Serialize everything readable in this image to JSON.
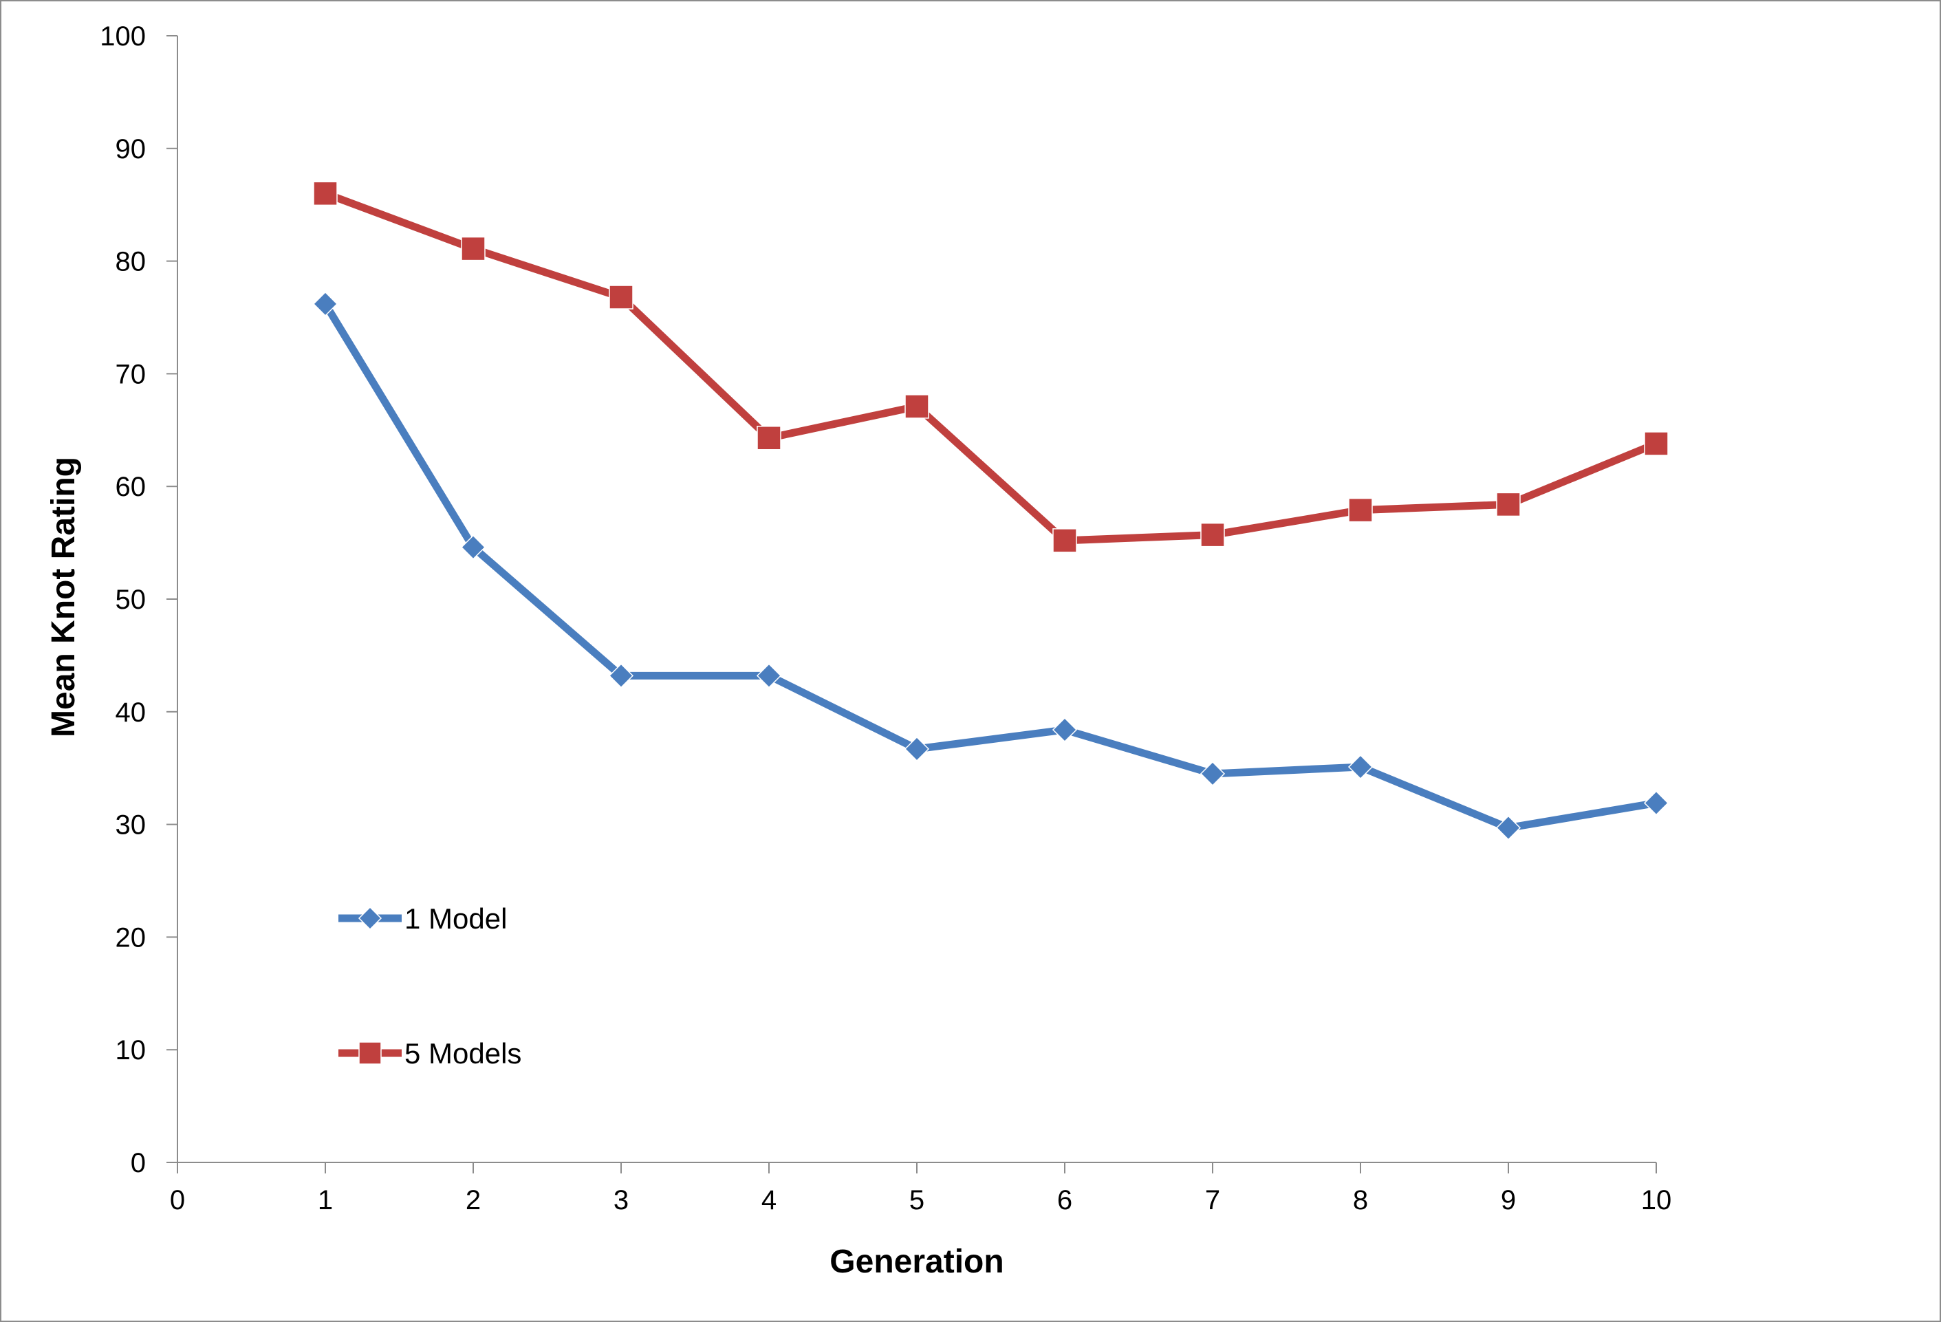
{
  "chart_data": {
    "type": "line",
    "title": "",
    "xlabel": "Generation",
    "ylabel": "Mean Knot Rating",
    "xlim": [
      0,
      10
    ],
    "ylim": [
      0,
      100
    ],
    "x_ticks": [
      0,
      1,
      2,
      3,
      4,
      5,
      6,
      7,
      8,
      9,
      10
    ],
    "y_ticks": [
      0,
      10,
      20,
      30,
      40,
      50,
      60,
      70,
      80,
      90,
      100
    ],
    "grid": false,
    "legend_position": "lower-left",
    "x": [
      1,
      2,
      3,
      4,
      5,
      6,
      7,
      8,
      9,
      10
    ],
    "series": [
      {
        "name": "1 Model",
        "color": "#4a7ebf",
        "marker": "diamond",
        "values": [
          76.2,
          54.6,
          43.2,
          43.2,
          36.7,
          38.4,
          34.5,
          35.1,
          29.7,
          31.9
        ]
      },
      {
        "name": "5 Models",
        "color": "#c0403e",
        "marker": "square",
        "values": [
          86.0,
          81.1,
          76.8,
          64.3,
          67.1,
          55.2,
          55.7,
          57.9,
          58.4,
          63.8
        ]
      }
    ]
  }
}
